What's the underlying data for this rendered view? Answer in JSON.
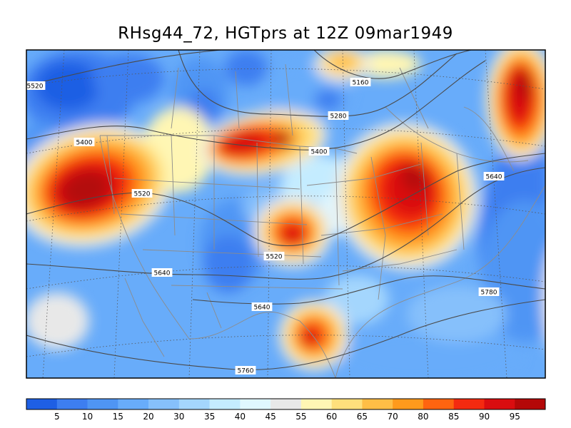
{
  "title": "RHsg44_72, HGTprs at 12Z  09mar1949",
  "fields": {
    "shaded": "RHsg44_72",
    "contoured": "HGTprs",
    "time": "12Z",
    "date": "09mar1949"
  },
  "map": {
    "region": "North America (contiguous United States)",
    "projection": "lambert-conformal",
    "grid_lines": "dotted",
    "boundaries": [
      "coastlines",
      "national borders",
      "state borders"
    ]
  },
  "contour_labels": [
    "5520",
    "5160",
    "5280",
    "5400",
    "5400",
    "5520",
    "5640",
    "5520",
    "5640",
    "5640",
    "5780",
    "5760"
  ],
  "colorbar": {
    "ticks": [
      "5",
      "10",
      "15",
      "20",
      "30",
      "35",
      "40",
      "45",
      "55",
      "60",
      "65",
      "70",
      "80",
      "85",
      "90",
      "95"
    ],
    "colors": [
      "#1e5fe4",
      "#3d7ef0",
      "#4f95f4",
      "#68acfa",
      "#86c0fb",
      "#a4d6fd",
      "#c4ecff",
      "#e0f8ff",
      "#e8e8e8",
      "#fff6b4",
      "#ffe07c",
      "#ffbe46",
      "#ff9a1c",
      "#ff6410",
      "#f42a10",
      "#da0d10",
      "#b40808"
    ]
  },
  "style": {
    "contour_color": "#4a4a4a",
    "boundary_color": "#8c8c8c",
    "grid_color": "#555555"
  }
}
